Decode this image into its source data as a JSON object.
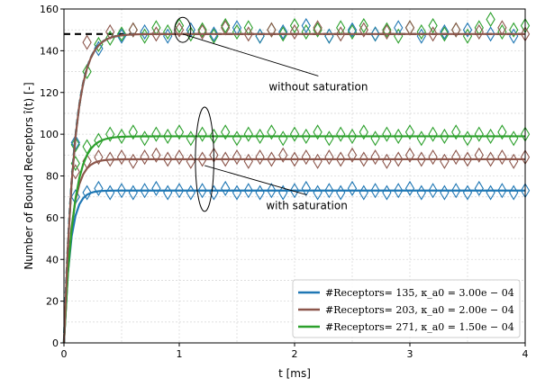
{
  "chart_data": {
    "type": "line",
    "title": "",
    "xlabel": "t [ms]",
    "ylabel": "Number of Bound Receptors î(t) [-]",
    "xlim": [
      0,
      4
    ],
    "ylim": [
      0,
      160
    ],
    "xticks": [
      0,
      1,
      2,
      3,
      4
    ],
    "yticks": [
      0,
      20,
      40,
      60,
      80,
      100,
      120,
      140,
      160
    ],
    "grid": true,
    "legend_position": "bottom-right",
    "reference_line": {
      "y": 148,
      "color": "#000000",
      "style": "dashed"
    },
    "annotations": [
      {
        "text": "without saturation",
        "x": 2.05,
        "y": 121,
        "target": {
          "x": 1.03,
          "y": 148
        }
      },
      {
        "text": "with saturation",
        "x": 1.95,
        "y": 64,
        "target": {
          "x": 1.22,
          "y": 85
        }
      }
    ],
    "ellipses": [
      {
        "cx": 1.03,
        "cy": 150,
        "rx": 0.07,
        "ry": 6
      },
      {
        "cx": 1.22,
        "cy": 88,
        "rx": 0.08,
        "ry": 25
      }
    ],
    "series": [
      {
        "legend": "#Receptors= 135, κ_a0 = 3.00e − 04",
        "color": "#1f77b4",
        "saturation_level": 73,
        "rate": 18,
        "markers": [
          [
            0.1,
            70
          ],
          [
            0.2,
            72
          ],
          [
            0.3,
            74
          ],
          [
            0.4,
            72
          ],
          [
            0.5,
            73
          ],
          [
            0.6,
            72
          ],
          [
            0.7,
            73
          ],
          [
            0.8,
            74
          ],
          [
            0.9,
            72
          ],
          [
            1.0,
            73
          ],
          [
            1.1,
            72
          ],
          [
            1.2,
            73
          ],
          [
            1.3,
            72
          ],
          [
            1.4,
            74
          ],
          [
            1.5,
            72
          ],
          [
            1.6,
            73
          ],
          [
            1.7,
            72
          ],
          [
            1.8,
            73
          ],
          [
            1.9,
            72
          ],
          [
            2.0,
            73
          ],
          [
            2.1,
            74
          ],
          [
            2.2,
            72
          ],
          [
            2.3,
            73
          ],
          [
            2.4,
            72
          ],
          [
            2.5,
            74
          ],
          [
            2.6,
            72
          ],
          [
            2.7,
            73
          ],
          [
            2.8,
            72
          ],
          [
            2.9,
            73
          ],
          [
            3.0,
            74
          ],
          [
            3.1,
            72
          ],
          [
            3.2,
            73
          ],
          [
            3.3,
            72
          ],
          [
            3.4,
            73
          ],
          [
            3.5,
            72
          ],
          [
            3.6,
            74
          ],
          [
            3.7,
            72
          ],
          [
            3.8,
            73
          ],
          [
            3.9,
            72
          ],
          [
            4.0,
            73
          ]
        ]
      },
      {
        "legend": "#Receptors= 203, κ_a0 = 2.00e − 04",
        "color": "#8c564b",
        "saturation_level": 88,
        "rate": 15,
        "markers": [
          [
            0.1,
            82
          ],
          [
            0.2,
            87
          ],
          [
            0.3,
            89
          ],
          [
            0.4,
            88
          ],
          [
            0.5,
            89
          ],
          [
            0.6,
            87
          ],
          [
            0.7,
            89
          ],
          [
            0.8,
            90
          ],
          [
            0.9,
            88
          ],
          [
            1.0,
            89
          ],
          [
            1.1,
            87
          ],
          [
            1.2,
            88
          ],
          [
            1.3,
            90
          ],
          [
            1.4,
            88
          ],
          [
            1.5,
            89
          ],
          [
            1.6,
            87
          ],
          [
            1.7,
            89
          ],
          [
            1.8,
            88
          ],
          [
            1.9,
            90
          ],
          [
            2.0,
            88
          ],
          [
            2.1,
            89
          ],
          [
            2.2,
            87
          ],
          [
            2.3,
            89
          ],
          [
            2.4,
            88
          ],
          [
            2.5,
            90
          ],
          [
            2.6,
            88
          ],
          [
            2.7,
            89
          ],
          [
            2.8,
            87
          ],
          [
            2.9,
            88
          ],
          [
            3.0,
            90
          ],
          [
            3.1,
            88
          ],
          [
            3.2,
            89
          ],
          [
            3.3,
            87
          ],
          [
            3.4,
            89
          ],
          [
            3.5,
            88
          ],
          [
            3.6,
            90
          ],
          [
            3.7,
            88
          ],
          [
            3.8,
            89
          ],
          [
            3.9,
            87
          ],
          [
            4.0,
            89
          ]
        ]
      },
      {
        "legend": "#Receptors= 271, κ_a0 = 1.50e − 04",
        "color": "#2ca02c",
        "saturation_level": 99,
        "rate": 12,
        "markers": [
          [
            0.1,
            86
          ],
          [
            0.2,
            94
          ],
          [
            0.3,
            97
          ],
          [
            0.4,
            100
          ],
          [
            0.5,
            99
          ],
          [
            0.6,
            101
          ],
          [
            0.7,
            98
          ],
          [
            0.8,
            100
          ],
          [
            0.9,
            99
          ],
          [
            1.0,
            101
          ],
          [
            1.1,
            98
          ],
          [
            1.2,
            100
          ],
          [
            1.3,
            99
          ],
          [
            1.4,
            101
          ],
          [
            1.5,
            98
          ],
          [
            1.6,
            100
          ],
          [
            1.7,
            99
          ],
          [
            1.8,
            101
          ],
          [
            1.9,
            98
          ],
          [
            2.0,
            100
          ],
          [
            2.1,
            99
          ],
          [
            2.2,
            101
          ],
          [
            2.3,
            98
          ],
          [
            2.4,
            100
          ],
          [
            2.5,
            99
          ],
          [
            2.6,
            101
          ],
          [
            2.7,
            98
          ],
          [
            2.8,
            100
          ],
          [
            2.9,
            99
          ],
          [
            3.0,
            101
          ],
          [
            3.1,
            98
          ],
          [
            3.2,
            100
          ],
          [
            3.3,
            99
          ],
          [
            3.4,
            101
          ],
          [
            3.5,
            98
          ],
          [
            3.6,
            100
          ],
          [
            3.7,
            99
          ],
          [
            3.8,
            101
          ],
          [
            3.9,
            98
          ],
          [
            4.0,
            100
          ]
        ]
      },
      {
        "legend": "",
        "color": "#2ca02c",
        "saturation_level": 148,
        "rate": 11,
        "dashed_until": 0.6,
        "markers": [
          [
            0.1,
            95
          ],
          [
            0.2,
            130
          ],
          [
            0.3,
            143
          ],
          [
            0.4,
            146
          ],
          [
            0.5,
            148
          ],
          [
            0.6,
            150
          ],
          [
            0.7,
            147
          ],
          [
            0.8,
            151
          ],
          [
            0.9,
            149
          ],
          [
            1.0,
            152
          ],
          [
            1.1,
            148
          ],
          [
            1.2,
            150
          ],
          [
            1.3,
            147
          ],
          [
            1.4,
            152
          ],
          [
            1.5,
            149
          ],
          [
            1.6,
            151
          ],
          [
            1.7,
            147
          ],
          [
            1.8,
            150
          ],
          [
            1.9,
            148
          ],
          [
            2.0,
            152
          ],
          [
            2.1,
            149
          ],
          [
            2.2,
            150
          ],
          [
            2.3,
            147
          ],
          [
            2.4,
            151
          ],
          [
            2.5,
            149
          ],
          [
            2.6,
            152
          ],
          [
            2.7,
            148
          ],
          [
            2.8,
            150
          ],
          [
            2.9,
            147
          ],
          [
            3.0,
            151
          ],
          [
            3.1,
            149
          ],
          [
            3.2,
            152
          ],
          [
            3.3,
            148
          ],
          [
            3.4,
            150
          ],
          [
            3.5,
            147
          ],
          [
            3.6,
            151
          ],
          [
            3.7,
            155
          ],
          [
            3.8,
            149
          ],
          [
            3.9,
            150
          ],
          [
            4.0,
            152
          ]
        ]
      },
      {
        "legend": "",
        "color": "#1f77b4",
        "saturation_level": 148,
        "rate": 11,
        "dashed_until": 0.6,
        "markers": [
          [
            0.1,
            96
          ],
          [
            0.3,
            141
          ],
          [
            0.5,
            147
          ],
          [
            0.7,
            149
          ],
          [
            0.9,
            147
          ],
          [
            1.1,
            150
          ],
          [
            1.3,
            148
          ],
          [
            1.5,
            151
          ],
          [
            1.7,
            147
          ],
          [
            1.9,
            149
          ],
          [
            2.1,
            152
          ],
          [
            2.3,
            147
          ],
          [
            2.5,
            150
          ],
          [
            2.7,
            148
          ],
          [
            2.9,
            151
          ],
          [
            3.1,
            147
          ],
          [
            3.3,
            149
          ],
          [
            3.5,
            150
          ],
          [
            3.7,
            148
          ],
          [
            3.9,
            147
          ]
        ]
      },
      {
        "legend": "",
        "color": "#8c564b",
        "saturation_level": 148,
        "rate": 11,
        "markers": [
          [
            0.2,
            144
          ],
          [
            0.4,
            149
          ],
          [
            0.6,
            150
          ],
          [
            0.8,
            148
          ],
          [
            1.0,
            150
          ],
          [
            1.2,
            149
          ],
          [
            1.4,
            151
          ],
          [
            1.6,
            148
          ],
          [
            1.8,
            150
          ],
          [
            2.0,
            149
          ],
          [
            2.2,
            151
          ],
          [
            2.4,
            148
          ],
          [
            2.6,
            150
          ],
          [
            2.8,
            149
          ],
          [
            3.0,
            151
          ],
          [
            3.2,
            148
          ],
          [
            3.4,
            150
          ],
          [
            3.6,
            149
          ],
          [
            3.8,
            151
          ],
          [
            4.0,
            148
          ]
        ]
      }
    ]
  }
}
